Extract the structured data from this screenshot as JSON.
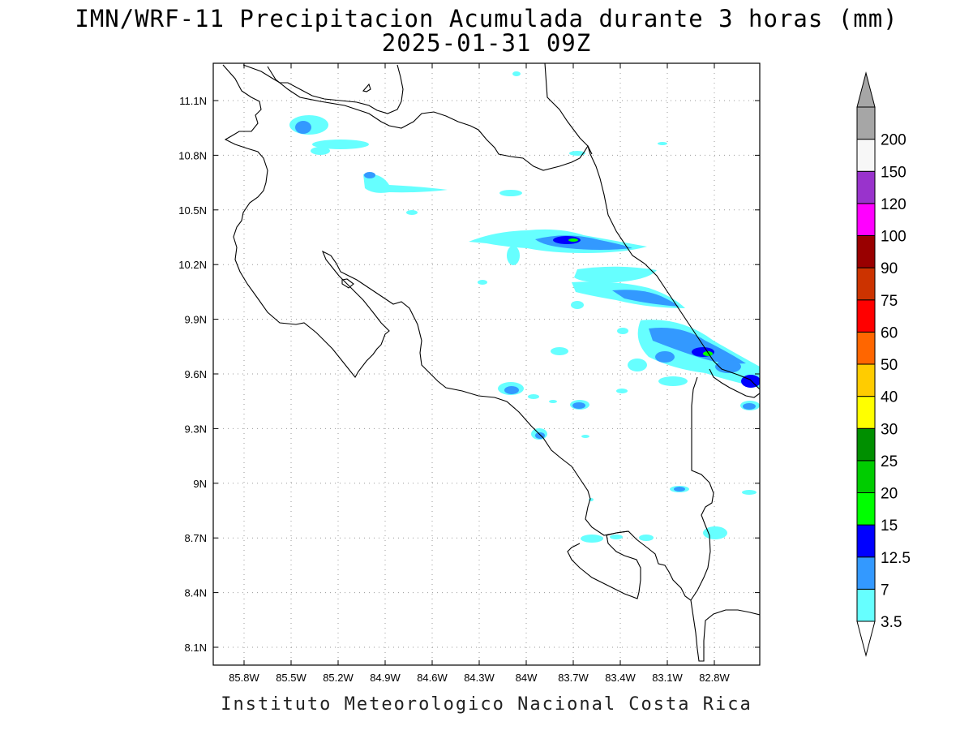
{
  "title": {
    "line1": "IMN/WRF-11 Precipitacion Acumulada durante 3 horas (mm)",
    "line2": "2025-01-31 09Z"
  },
  "footer": "Instituto Meteorologico Nacional Costa Rica",
  "axes": {
    "x_ticks": [
      "85.8W",
      "85.5W",
      "85.2W",
      "84.9W",
      "84.6W",
      "84.3W",
      "84W",
      "83.7W",
      "83.4W",
      "83.1W",
      "82.8W"
    ],
    "y_ticks": [
      "11.1N",
      "10.8N",
      "10.5N",
      "10.2N",
      "9.9N",
      "9.6N",
      "9.3N",
      "9N",
      "8.7N",
      "8.4N",
      "8.1N"
    ]
  },
  "colorbar": {
    "labels": [
      "3.5",
      "7",
      "12.5",
      "15",
      "20",
      "25",
      "30",
      "40",
      "50",
      "60",
      "75",
      "90",
      "100",
      "120",
      "150",
      "200"
    ],
    "colors": [
      "#66ffff",
      "#3399ff",
      "#0000ff",
      "#00ff00",
      "#00cc00",
      "#008f00",
      "#ffff00",
      "#ffcc00",
      "#ff6600",
      "#ff0000",
      "#cc3300",
      "#990000",
      "#ff00ff",
      "#9933cc",
      "#f7f7f7",
      "#a6a6a6"
    ],
    "under_color": "#ffffff",
    "over_color": "#a6a6a6"
  },
  "colors": {
    "light_cyan": "#66ffff",
    "mid_blue": "#3399ff",
    "dark_blue": "#0000ff",
    "green": "#00ff00"
  }
}
